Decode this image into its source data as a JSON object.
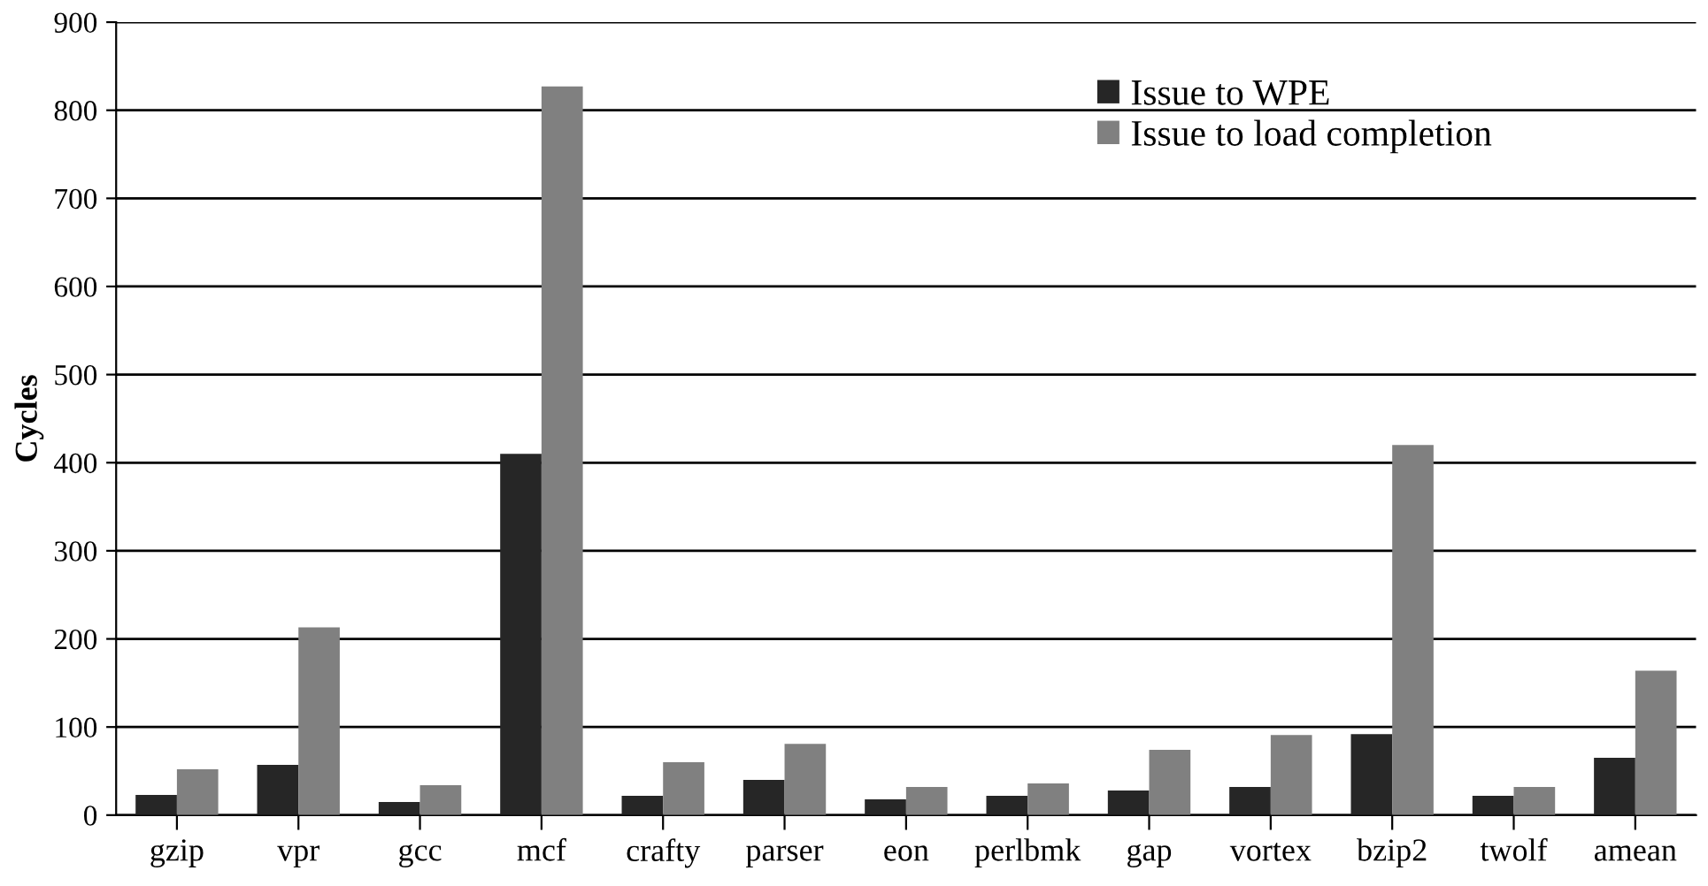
{
  "chart_data": {
    "type": "bar",
    "ylabel": "Cycles",
    "categories": [
      "gzip",
      "vpr",
      "gcc",
      "mcf",
      "crafty",
      "parser",
      "eon",
      "perlbmk",
      "gap",
      "vortex",
      "bzip2",
      "twolf",
      "amean"
    ],
    "series": [
      {
        "name": "Issue to WPE",
        "color": "#262626",
        "values": [
          23,
          57,
          15,
          410,
          22,
          40,
          18,
          22,
          28,
          32,
          92,
          22,
          65
        ]
      },
      {
        "name": "Issue to load completion",
        "color": "#808080",
        "values": [
          52,
          213,
          34,
          827,
          60,
          81,
          32,
          36,
          74,
          91,
          420,
          32,
          164
        ]
      }
    ],
    "ylim": [
      0,
      900
    ],
    "yticks": [
      0,
      100,
      200,
      300,
      400,
      500,
      600,
      700,
      800,
      900
    ],
    "grid": "y",
    "legend": "top right"
  }
}
